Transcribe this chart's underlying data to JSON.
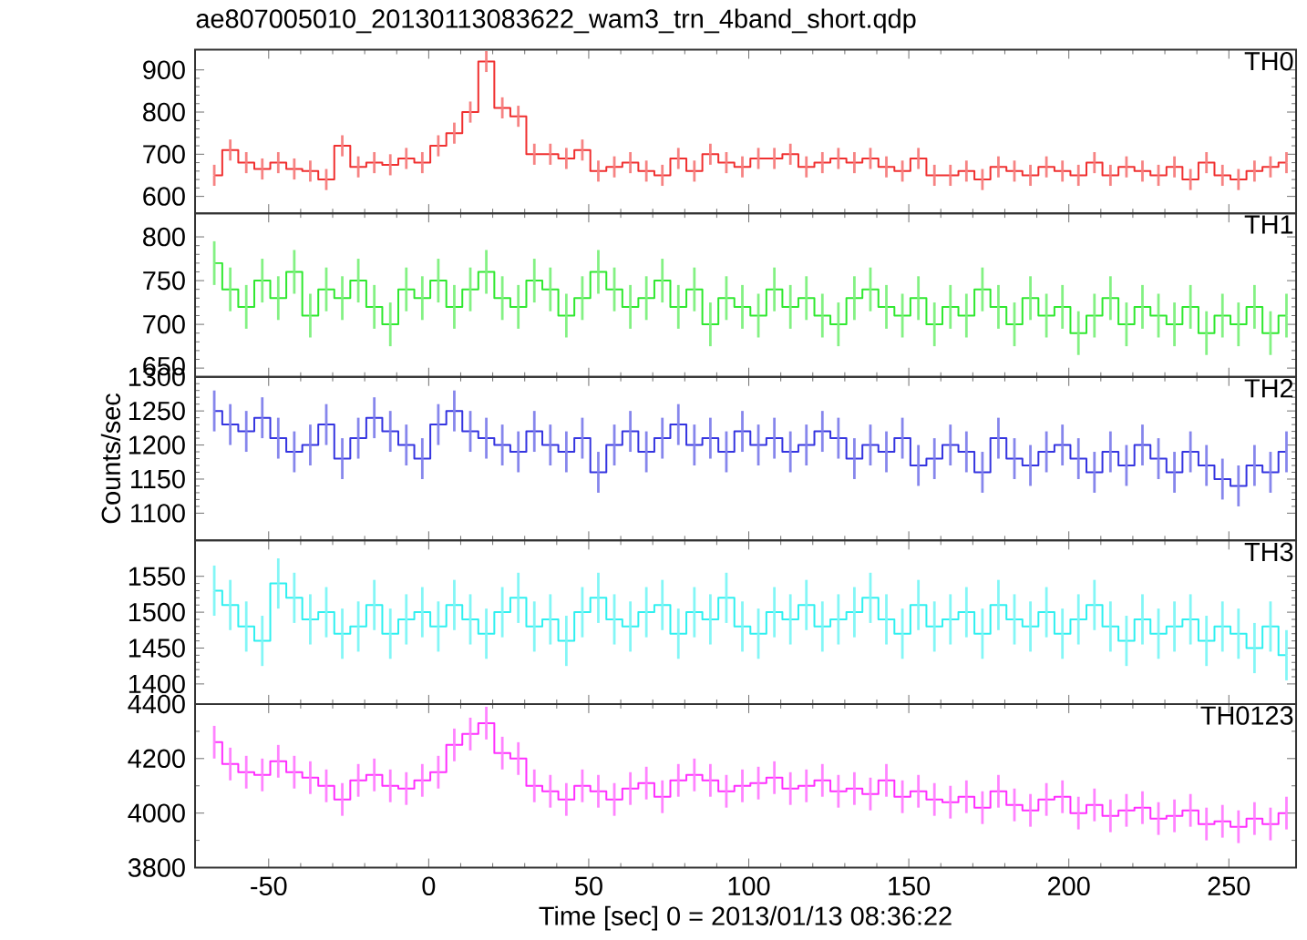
{
  "chart_data": [
    {
      "type": "step",
      "title": "ae807005010_20130113083622_wam3_trn_4band_short.qdp",
      "annotations": [
        "TH0"
      ],
      "tick_labels": "y",
      "xlim": [
        -73,
        271
      ],
      "xticks": [
        -50,
        0,
        50,
        100,
        150,
        200,
        250
      ],
      "ylim": [
        560,
        948
      ],
      "yticks": [
        600,
        700,
        800,
        900
      ],
      "x": [
        -67,
        -62,
        -57,
        -52,
        -47,
        -42,
        -37,
        -32,
        -27,
        -22,
        -17,
        -12,
        -7,
        -2,
        3,
        8,
        13,
        18,
        23,
        28,
        33,
        38,
        43,
        48,
        53,
        58,
        63,
        68,
        73,
        78,
        83,
        88,
        93,
        98,
        103,
        108,
        113,
        118,
        123,
        128,
        133,
        138,
        143,
        148,
        153,
        158,
        163,
        168,
        173,
        178,
        183,
        188,
        193,
        198,
        203,
        208,
        213,
        218,
        223,
        228,
        233,
        238,
        243,
        248,
        253,
        258,
        263,
        268
      ],
      "series": [
        {
          "color": "#f03030",
          "values": [
            650,
            710,
            680,
            665,
            680,
            665,
            660,
            640,
            720,
            670,
            680,
            675,
            690,
            680,
            720,
            750,
            800,
            920,
            810,
            790,
            700,
            700,
            690,
            710,
            660,
            670,
            680,
            660,
            650,
            690,
            660,
            700,
            680,
            670,
            690,
            690,
            700,
            670,
            680,
            690,
            680,
            690,
            670,
            660,
            690,
            650,
            650,
            660,
            640,
            670,
            660,
            650,
            670,
            660,
            650,
            680,
            650,
            670,
            660,
            650,
            670,
            640,
            680,
            650,
            640,
            660,
            670,
            680
          ],
          "errors": [
            25,
            25,
            25,
            25,
            25,
            25,
            25,
            25,
            25,
            25,
            25,
            25,
            25,
            25,
            25,
            25,
            25,
            25,
            25,
            25,
            25,
            25,
            25,
            25,
            25,
            25,
            25,
            25,
            25,
            25,
            25,
            25,
            25,
            25,
            25,
            25,
            25,
            25,
            25,
            25,
            25,
            25,
            25,
            25,
            25,
            25,
            25,
            25,
            25,
            25,
            25,
            25,
            25,
            25,
            25,
            25,
            25,
            25,
            25,
            25,
            25,
            25,
            25,
            25,
            25,
            25,
            25,
            25
          ]
        }
      ]
    },
    {
      "type": "step",
      "annotations": [
        "TH1"
      ],
      "tick_labels": "y",
      "xlim": [
        -73,
        271
      ],
      "xticks": [
        -50,
        0,
        50,
        100,
        150,
        200,
        250
      ],
      "ylim": [
        640,
        827
      ],
      "yticks": [
        650,
        700,
        750,
        800
      ],
      "x": [
        -67,
        -62,
        -57,
        -52,
        -47,
        -42,
        -37,
        -32,
        -27,
        -22,
        -17,
        -12,
        -7,
        -2,
        3,
        8,
        13,
        18,
        23,
        28,
        33,
        38,
        43,
        48,
        53,
        58,
        63,
        68,
        73,
        78,
        83,
        88,
        93,
        98,
        103,
        108,
        113,
        118,
        123,
        128,
        133,
        138,
        143,
        148,
        153,
        158,
        163,
        168,
        173,
        178,
        183,
        188,
        193,
        198,
        203,
        208,
        213,
        218,
        223,
        228,
        233,
        238,
        243,
        248,
        253,
        258,
        263,
        268
      ],
      "series": [
        {
          "color": "#30e830",
          "values": [
            770,
            740,
            720,
            750,
            730,
            760,
            710,
            740,
            730,
            750,
            720,
            700,
            740,
            730,
            750,
            720,
            740,
            760,
            730,
            720,
            750,
            740,
            710,
            730,
            760,
            740,
            720,
            730,
            750,
            720,
            740,
            700,
            730,
            720,
            710,
            740,
            720,
            730,
            710,
            700,
            730,
            740,
            720,
            710,
            730,
            700,
            720,
            710,
            740,
            720,
            700,
            730,
            710,
            720,
            690,
            710,
            730,
            700,
            720,
            710,
            700,
            720,
            690,
            710,
            700,
            720,
            690,
            710
          ],
          "errors": [
            25,
            25,
            25,
            25,
            25,
            25,
            25,
            25,
            25,
            25,
            25,
            25,
            25,
            25,
            25,
            25,
            25,
            25,
            25,
            25,
            25,
            25,
            25,
            25,
            25,
            25,
            25,
            25,
            25,
            25,
            25,
            25,
            25,
            25,
            25,
            25,
            25,
            25,
            25,
            25,
            25,
            25,
            25,
            25,
            25,
            25,
            25,
            25,
            25,
            25,
            25,
            25,
            25,
            25,
            25,
            25,
            25,
            25,
            25,
            25,
            25,
            25,
            25,
            25,
            25,
            25,
            25,
            25
          ]
        }
      ]
    },
    {
      "type": "step",
      "ylabel": "Counts/sec",
      "annotations": [
        "TH2"
      ],
      "tick_labels": "y",
      "xlim": [
        -73,
        271
      ],
      "xticks": [
        -50,
        0,
        50,
        100,
        150,
        200,
        250
      ],
      "ylim": [
        1060,
        1300
      ],
      "yticks": [
        1100,
        1150,
        1200,
        1250,
        1300
      ],
      "x": [
        -67,
        -62,
        -57,
        -52,
        -47,
        -42,
        -37,
        -32,
        -27,
        -22,
        -17,
        -12,
        -7,
        -2,
        3,
        8,
        13,
        18,
        23,
        28,
        33,
        38,
        43,
        48,
        53,
        58,
        63,
        68,
        73,
        78,
        83,
        88,
        93,
        98,
        103,
        108,
        113,
        118,
        123,
        128,
        133,
        138,
        143,
        148,
        153,
        158,
        163,
        168,
        173,
        178,
        183,
        188,
        193,
        198,
        203,
        208,
        213,
        218,
        223,
        228,
        233,
        238,
        243,
        248,
        253,
        258,
        263,
        268
      ],
      "series": [
        {
          "color": "#3535e0",
          "values": [
            1250,
            1230,
            1220,
            1240,
            1210,
            1190,
            1200,
            1230,
            1180,
            1210,
            1240,
            1220,
            1200,
            1180,
            1230,
            1250,
            1220,
            1210,
            1200,
            1190,
            1220,
            1200,
            1190,
            1210,
            1160,
            1200,
            1220,
            1190,
            1210,
            1230,
            1200,
            1210,
            1190,
            1220,
            1200,
            1210,
            1190,
            1200,
            1220,
            1210,
            1180,
            1200,
            1190,
            1210,
            1170,
            1180,
            1200,
            1190,
            1160,
            1210,
            1180,
            1170,
            1190,
            1200,
            1180,
            1160,
            1190,
            1170,
            1200,
            1180,
            1160,
            1190,
            1170,
            1150,
            1140,
            1170,
            1160,
            1190
          ],
          "errors": [
            30,
            30,
            30,
            30,
            30,
            30,
            30,
            30,
            30,
            30,
            30,
            30,
            30,
            30,
            30,
            30,
            30,
            30,
            30,
            30,
            30,
            30,
            30,
            30,
            30,
            30,
            30,
            30,
            30,
            30,
            30,
            30,
            30,
            30,
            30,
            30,
            30,
            30,
            30,
            30,
            30,
            30,
            30,
            30,
            30,
            30,
            30,
            30,
            30,
            30,
            30,
            30,
            30,
            30,
            30,
            30,
            30,
            30,
            30,
            30,
            30,
            30,
            30,
            30,
            30,
            30,
            30,
            30
          ]
        }
      ]
    },
    {
      "type": "step",
      "annotations": [
        "TH3"
      ],
      "tick_labels": "y",
      "xlim": [
        -73,
        271
      ],
      "xticks": [
        -50,
        0,
        50,
        100,
        150,
        200,
        250
      ],
      "ylim": [
        1372,
        1600
      ],
      "yticks": [
        1400,
        1450,
        1500,
        1550
      ],
      "x": [
        -67,
        -62,
        -57,
        -52,
        -47,
        -42,
        -37,
        -32,
        -27,
        -22,
        -17,
        -12,
        -7,
        -2,
        3,
        8,
        13,
        18,
        23,
        28,
        33,
        38,
        43,
        48,
        53,
        58,
        63,
        68,
        73,
        78,
        83,
        88,
        93,
        98,
        103,
        108,
        113,
        118,
        123,
        128,
        133,
        138,
        143,
        148,
        153,
        158,
        163,
        168,
        173,
        178,
        183,
        188,
        193,
        198,
        203,
        208,
        213,
        218,
        223,
        228,
        233,
        238,
        243,
        248,
        253,
        258,
        263,
        268
      ],
      "series": [
        {
          "color": "#30f0f0",
          "values": [
            1530,
            1510,
            1480,
            1460,
            1540,
            1520,
            1490,
            1500,
            1470,
            1480,
            1510,
            1470,
            1490,
            1500,
            1480,
            1510,
            1490,
            1470,
            1500,
            1520,
            1480,
            1490,
            1460,
            1500,
            1520,
            1490,
            1480,
            1500,
            1510,
            1470,
            1500,
            1490,
            1520,
            1480,
            1470,
            1500,
            1490,
            1510,
            1480,
            1490,
            1500,
            1520,
            1490,
            1470,
            1510,
            1480,
            1490,
            1500,
            1470,
            1510,
            1490,
            1480,
            1500,
            1470,
            1490,
            1510,
            1480,
            1460,
            1490,
            1470,
            1480,
            1490,
            1460,
            1480,
            1470,
            1450,
            1480,
            1440
          ],
          "errors": [
            35,
            35,
            35,
            35,
            35,
            35,
            35,
            35,
            35,
            35,
            35,
            35,
            35,
            35,
            35,
            35,
            35,
            35,
            35,
            35,
            35,
            35,
            35,
            35,
            35,
            35,
            35,
            35,
            35,
            35,
            35,
            35,
            35,
            35,
            35,
            35,
            35,
            35,
            35,
            35,
            35,
            35,
            35,
            35,
            35,
            35,
            35,
            35,
            35,
            35,
            35,
            35,
            35,
            35,
            35,
            35,
            35,
            35,
            35,
            35,
            35,
            35,
            35,
            35,
            35,
            35,
            35,
            35
          ]
        }
      ]
    },
    {
      "type": "step",
      "xlabel": "Time [sec] 0 = 2013/01/13 08:36:22",
      "annotations": [
        "TH0123"
      ],
      "xlim": [
        -73,
        271
      ],
      "xticks": [
        -50,
        0,
        50,
        100,
        150,
        200,
        250
      ],
      "ylim": [
        3800,
        4400
      ],
      "yticks": [
        3800,
        4000,
        4200,
        4400
      ],
      "x": [
        -67,
        -62,
        -57,
        -52,
        -47,
        -42,
        -37,
        -32,
        -27,
        -22,
        -17,
        -12,
        -7,
        -2,
        3,
        8,
        13,
        18,
        23,
        28,
        33,
        38,
        43,
        48,
        53,
        58,
        63,
        68,
        73,
        78,
        83,
        88,
        93,
        98,
        103,
        108,
        113,
        118,
        123,
        128,
        133,
        138,
        143,
        148,
        153,
        158,
        163,
        168,
        173,
        178,
        183,
        188,
        193,
        198,
        203,
        208,
        213,
        218,
        223,
        228,
        233,
        238,
        243,
        248,
        253,
        258,
        263,
        268
      ],
      "series": [
        {
          "color": "#ff30ff",
          "values": [
            4260,
            4180,
            4150,
            4140,
            4190,
            4150,
            4130,
            4100,
            4050,
            4120,
            4140,
            4100,
            4090,
            4120,
            4150,
            4250,
            4290,
            4330,
            4220,
            4200,
            4100,
            4080,
            4050,
            4100,
            4080,
            4050,
            4090,
            4110,
            4060,
            4120,
            4140,
            4120,
            4080,
            4100,
            4110,
            4130,
            4090,
            4100,
            4120,
            4080,
            4090,
            4070,
            4120,
            4060,
            4080,
            4050,
            4040,
            4060,
            4020,
            4080,
            4030,
            4010,
            4050,
            4060,
            4000,
            4030,
            3990,
            4010,
            4020,
            3980,
            3990,
            4010,
            3960,
            3970,
            3950,
            3980,
            3960,
            4000
          ],
          "errors": [
            60,
            60,
            60,
            60,
            60,
            60,
            60,
            60,
            60,
            60,
            60,
            60,
            60,
            60,
            60,
            60,
            60,
            60,
            60,
            60,
            60,
            60,
            60,
            60,
            60,
            60,
            60,
            60,
            60,
            60,
            60,
            60,
            60,
            60,
            60,
            60,
            60,
            60,
            60,
            60,
            60,
            60,
            60,
            60,
            60,
            60,
            60,
            60,
            60,
            60,
            60,
            60,
            60,
            60,
            60,
            60,
            60,
            60,
            60,
            60,
            60,
            60,
            60,
            60,
            60,
            60,
            60,
            60
          ]
        }
      ]
    }
  ]
}
